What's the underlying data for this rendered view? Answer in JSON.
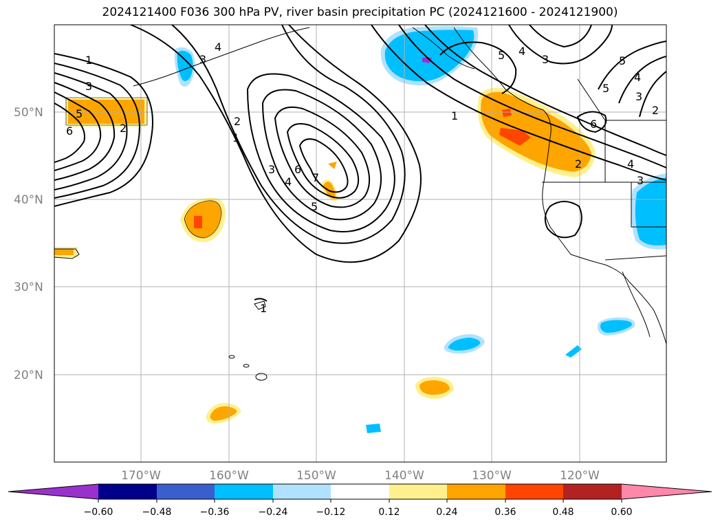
{
  "title": "2024121400 F036 300 hPa PV, river basin precipitation PC (2024121600 - 2024121900)",
  "lat_labels": [
    "50°N",
    "40°N",
    "30°N",
    "20°N"
  ],
  "lon_labels": [
    "170°W",
    "160°W",
    "150°W",
    "140°W",
    "130°W",
    "120°W"
  ],
  "colorbar": {
    "ticks": [
      "−0.60",
      "−0.48",
      "−0.36",
      "−0.24",
      "−0.12",
      "0.12",
      "0.24",
      "0.36",
      "0.48",
      "0.60"
    ],
    "colors": [
      "#9932cc",
      "#00008b",
      "#3a5fcd",
      "#00bfff",
      "#b0e2ff",
      "#ffffff",
      "#fff08f",
      "#ffa500",
      "#ff4500",
      "#b22222",
      "#ff88aa"
    ]
  },
  "contour_labels": [
    "1",
    "3",
    "5",
    "6",
    "2",
    "4",
    "3",
    "2",
    "1",
    "3",
    "4",
    "6",
    "7",
    "5",
    "1",
    "5",
    "4",
    "3",
    "5",
    "4",
    "3",
    "5",
    "2",
    "6",
    "2",
    "4",
    "3",
    "1"
  ],
  "colors": {
    "blue": "#00bfff",
    "light_blue": "#b0e2ff",
    "purple": "#9932cc",
    "yellow": "#fff08f",
    "orange": "#ffa500",
    "red_orange": "#ff4500"
  }
}
